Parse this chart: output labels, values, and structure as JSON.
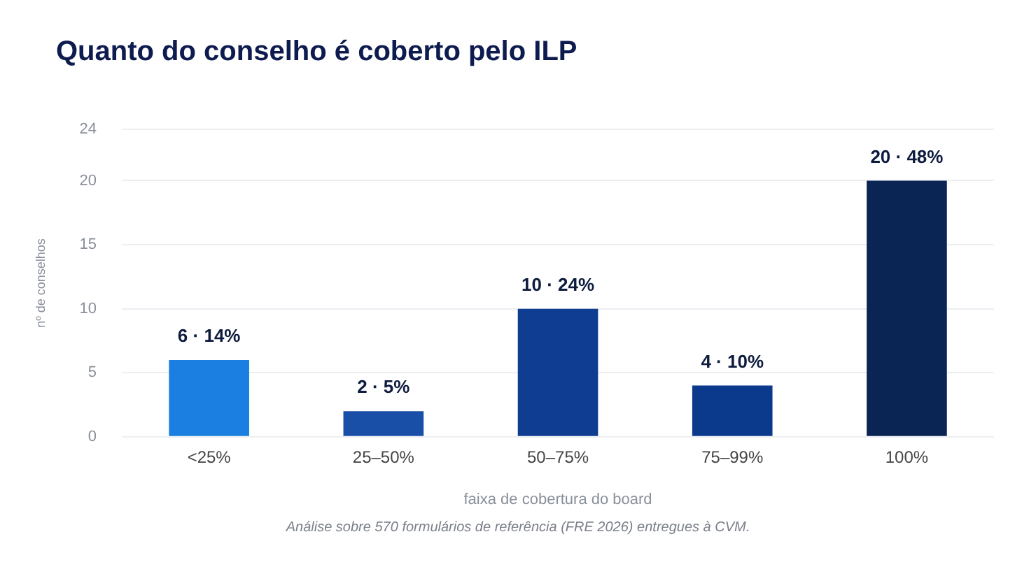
{
  "chart_data": {
    "type": "bar",
    "title": "Quanto do conselho é coberto pelo ILP",
    "xlabel": "faixa de cobertura do board",
    "ylabel": "nº de conselhos",
    "categories": [
      "<25%",
      "25–50%",
      "50–75%",
      "75–99%",
      "100%"
    ],
    "values": [
      6,
      2,
      10,
      4,
      20
    ],
    "colors": [
      "#1a7fe0",
      "#1a4fa8",
      "#0f3d91",
      "#0b3a8c",
      "#0a2454"
    ],
    "value_labels": [
      "6 · 14%",
      "2 · 5%",
      "10 · 24%",
      "4 · 10%",
      "20 · 48%"
    ],
    "ylim": [
      0,
      24
    ],
    "yticks": [
      0,
      5,
      10,
      15,
      20,
      24
    ],
    "grid": "y",
    "annotations": [
      "Análise sobre 570 formulários de referência (FRE 2026) entregues à CVM."
    ]
  }
}
